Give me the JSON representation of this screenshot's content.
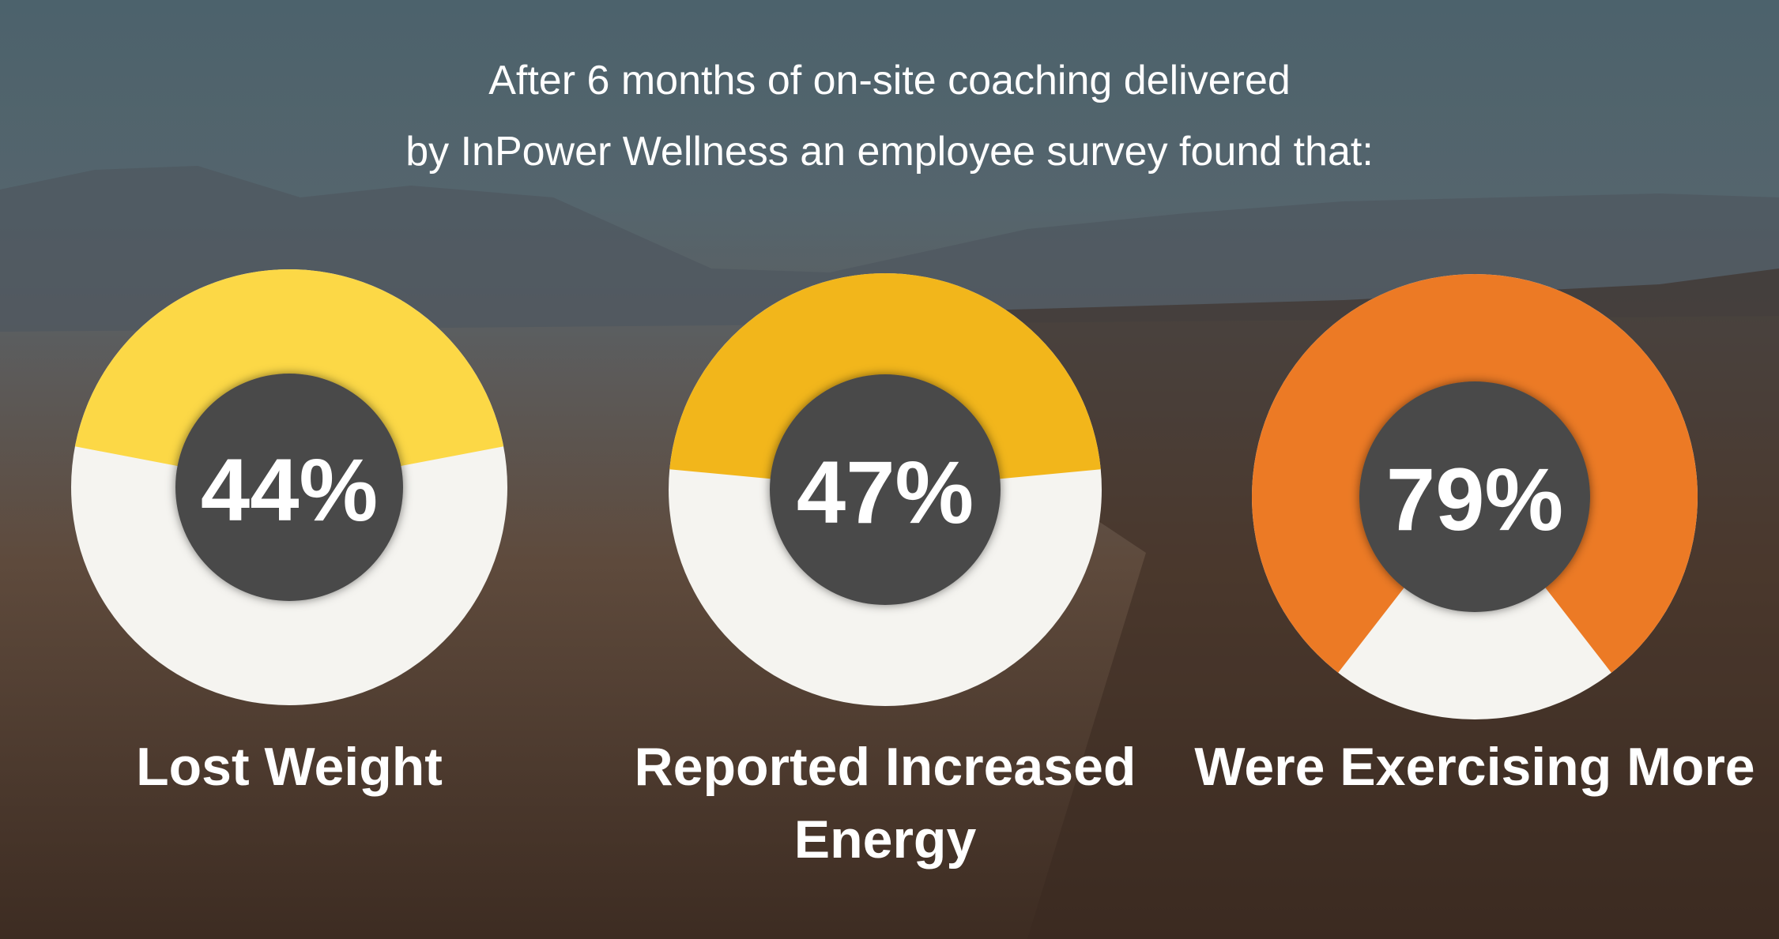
{
  "title_lines": [
    "After 6 months of on-site coaching delivered",
    "by InPower Wellness an employee survey found that:"
  ],
  "chart_data": [
    {
      "type": "donut",
      "categories": [
        "Lost Weight"
      ],
      "values": [
        44
      ],
      "value_labels": [
        "44%"
      ],
      "color": "#fcd846"
    },
    {
      "type": "donut",
      "categories": [
        "Reported Increased Energy"
      ],
      "values": [
        47
      ],
      "value_labels": [
        "47%"
      ],
      "color": "#f2b61b"
    },
    {
      "type": "donut",
      "categories": [
        "Were Exercising More"
      ],
      "values": [
        79
      ],
      "value_labels": [
        "79%"
      ],
      "color": "#ec7a25"
    }
  ]
}
